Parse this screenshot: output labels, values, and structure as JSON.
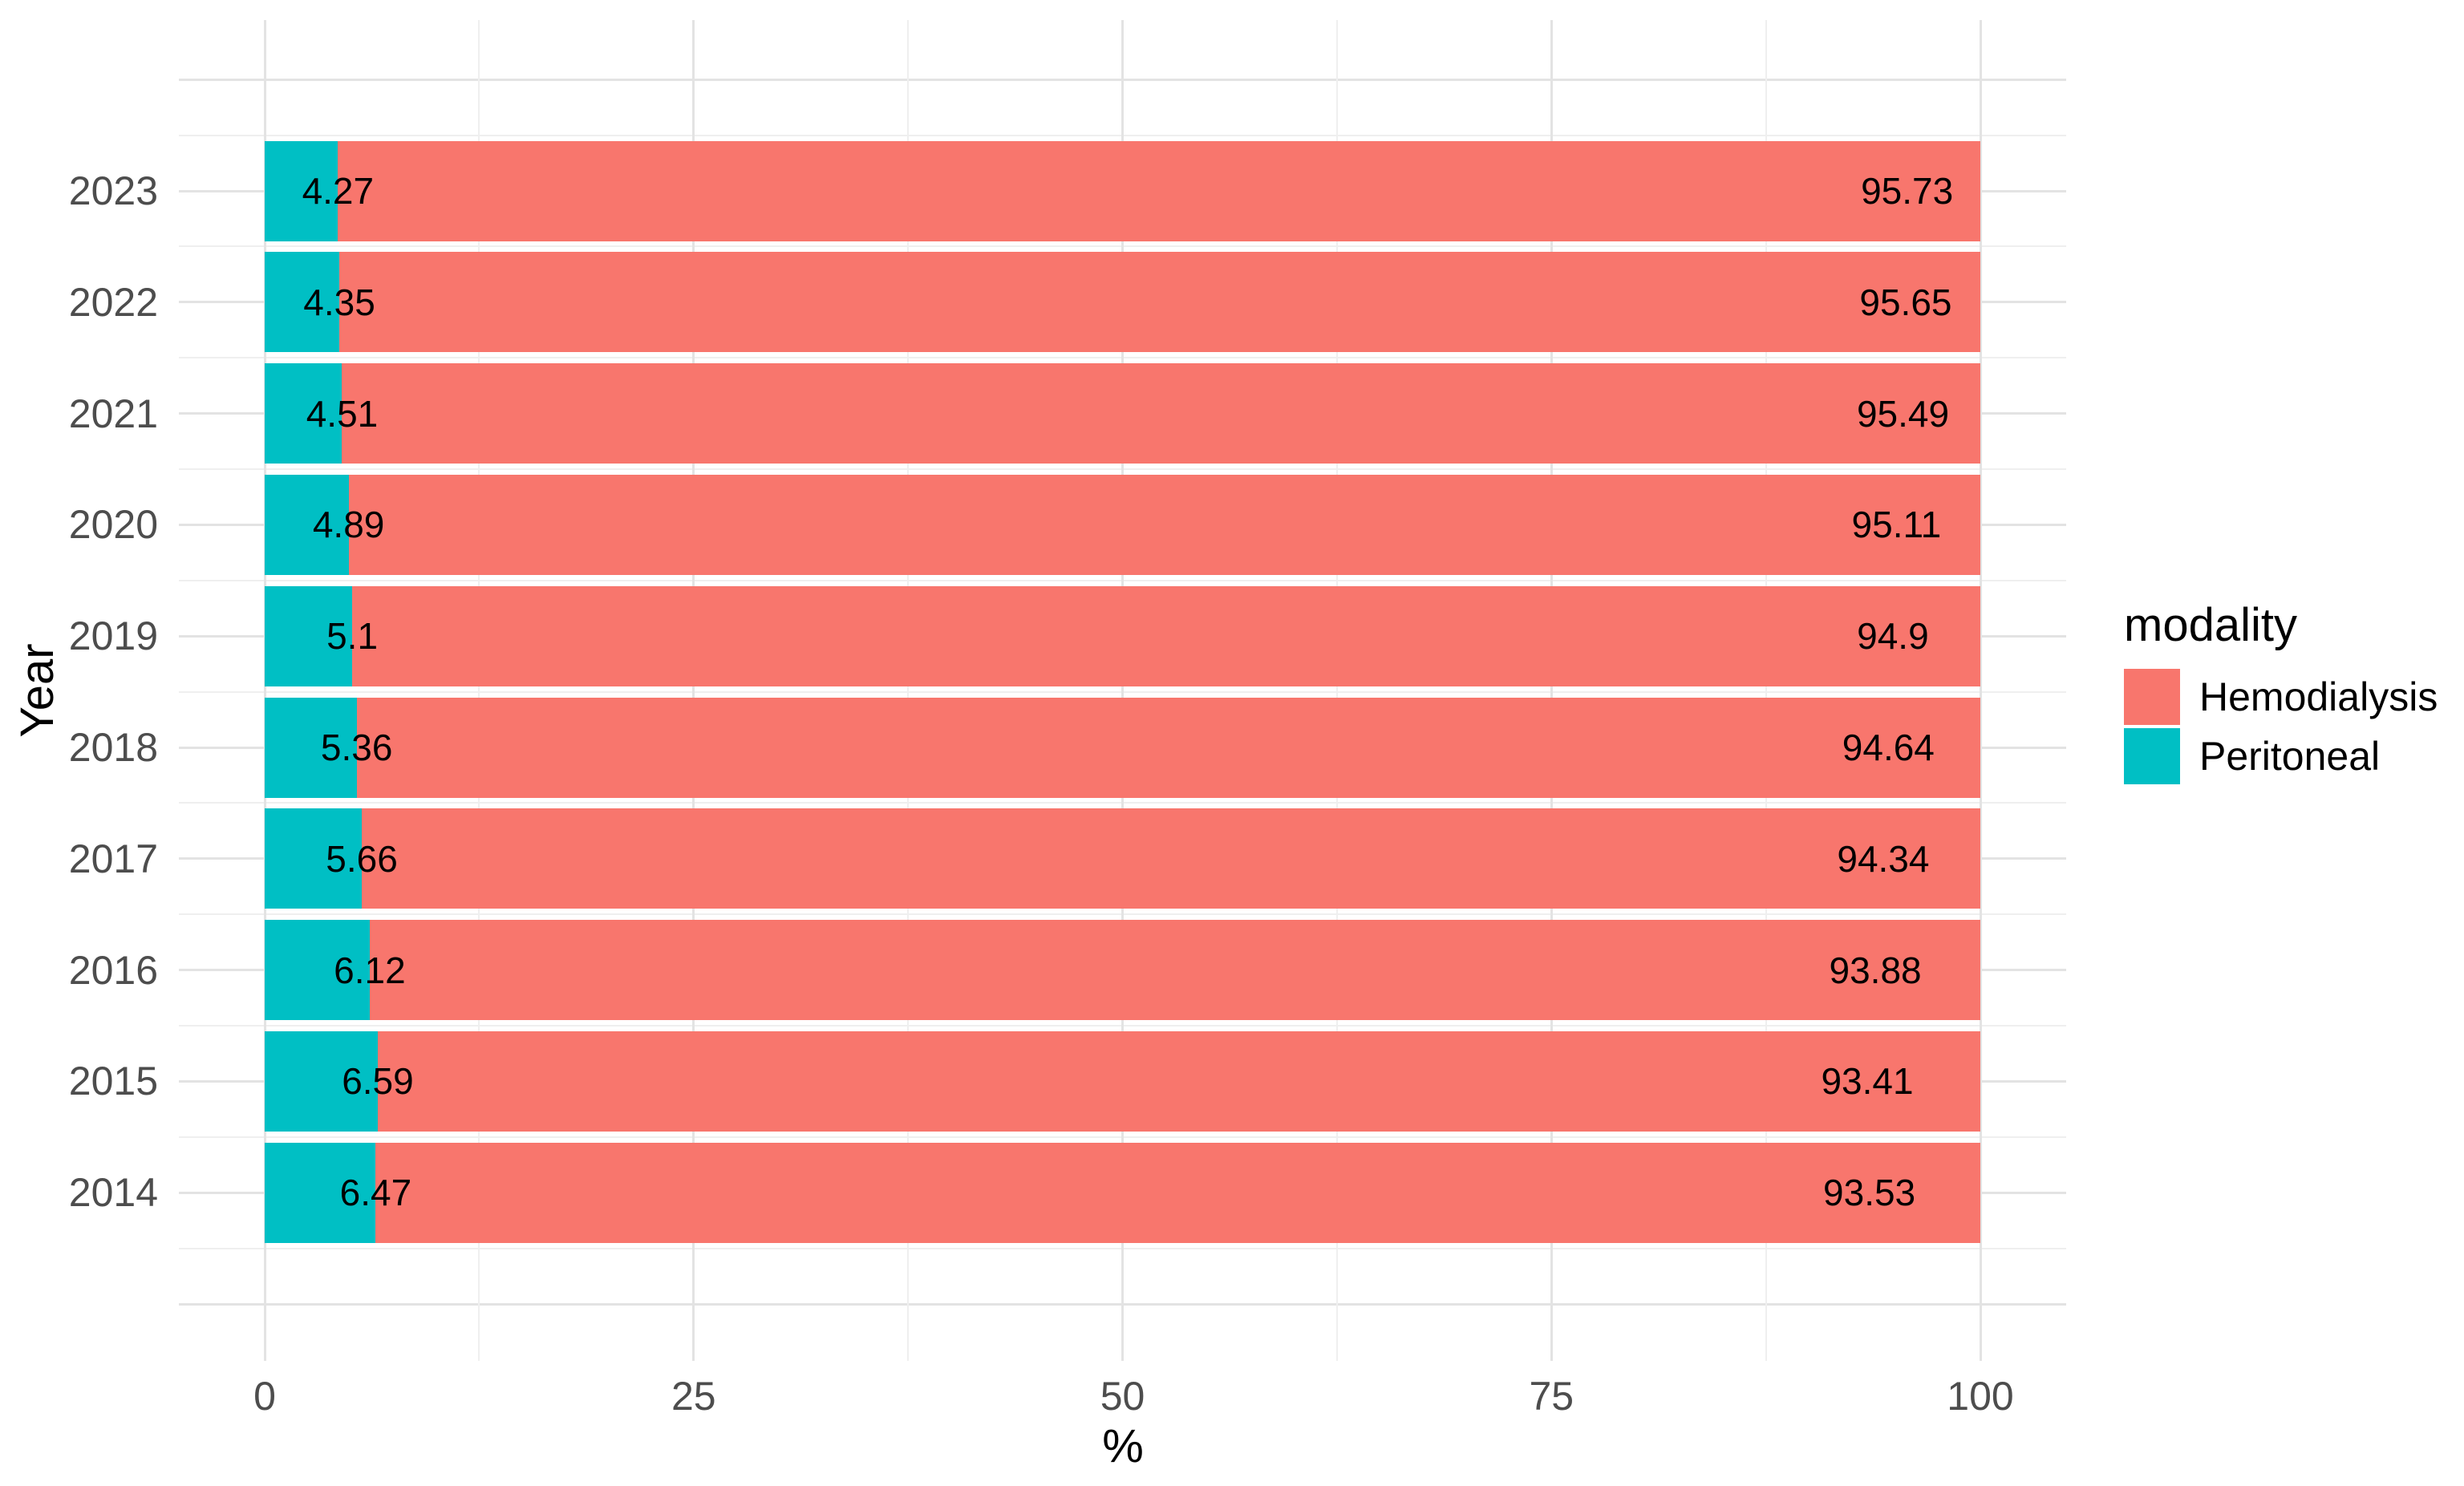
{
  "figure": {
    "background": "#FFFFFF"
  },
  "axes": {
    "x": {
      "title": "%",
      "tick_labels": [
        "0",
        "25",
        "50",
        "75",
        "100"
      ],
      "tick_values": [
        0,
        25,
        50,
        75,
        100
      ],
      "minor_tick_values": [
        12.5,
        37.5,
        62.5,
        87.5
      ],
      "range": [
        0,
        100
      ]
    },
    "y": {
      "title": "Year",
      "categories": [
        "2023",
        "2022",
        "2021",
        "2020",
        "2019",
        "2018",
        "2017",
        "2016",
        "2015",
        "2014"
      ]
    }
  },
  "legend": {
    "title": "modality",
    "position": "right",
    "items": [
      {
        "label": "Hemodialysis",
        "color": "#F8766D"
      },
      {
        "label": "Peritoneal",
        "color": "#00BFC4"
      }
    ]
  },
  "chart_data": {
    "type": "bar",
    "orientation": "horizontal",
    "stacked": true,
    "title": "",
    "xlabel": "%",
    "ylabel": "Year",
    "xlim": [
      0,
      100
    ],
    "xticks": [
      0,
      25,
      50,
      75,
      100
    ],
    "grid": true,
    "legend_position": "right",
    "tick_color": "#4D4D4D",
    "label_color": "#000000",
    "categories": [
      "2023",
      "2022",
      "2021",
      "2020",
      "2019",
      "2018",
      "2017",
      "2016",
      "2015",
      "2014"
    ],
    "series": [
      {
        "name": "Peritoneal",
        "color": "#00BFC4",
        "values": [
          4.27,
          4.35,
          4.51,
          4.89,
          5.1,
          5.36,
          5.66,
          6.12,
          6.59,
          6.47
        ],
        "labels": [
          "4.27",
          "4.35",
          "4.51",
          "4.89",
          "5.1",
          "5.36",
          "5.66",
          "6.12",
          "6.59",
          "6.47"
        ]
      },
      {
        "name": "Hemodialysis",
        "color": "#F8766D",
        "values": [
          95.73,
          95.65,
          95.49,
          95.11,
          94.9,
          94.64,
          94.34,
          93.88,
          93.41,
          93.53
        ],
        "labels": [
          "95.73",
          "95.65",
          "95.49",
          "95.11",
          "94.9",
          "94.64",
          "94.34",
          "93.88",
          "93.41",
          "93.53"
        ]
      }
    ]
  }
}
